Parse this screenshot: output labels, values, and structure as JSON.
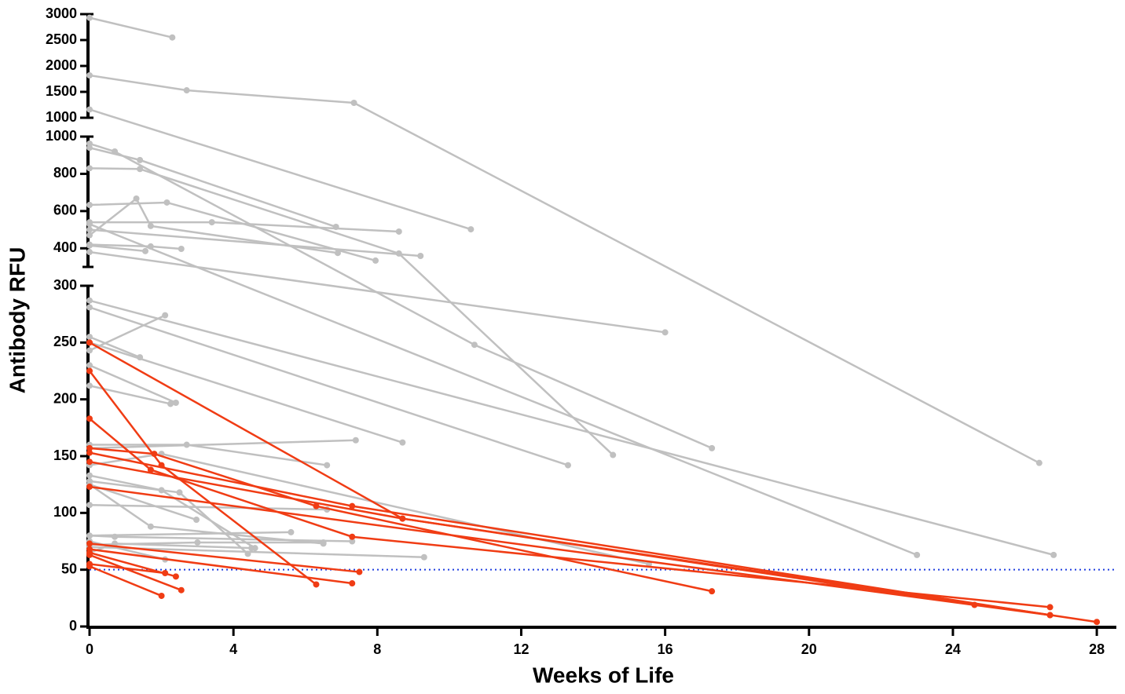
{
  "chart_data": {
    "type": "line",
    "x_label": "Weeks of Life",
    "y_label": "Antibody RFU",
    "xlim": [
      0,
      28.5
    ],
    "xticks": [
      0,
      4,
      8,
      12,
      16,
      20,
      24,
      28
    ],
    "y_segments": [
      {
        "ylim": [
          0,
          300
        ],
        "yticks": [
          0,
          50,
          100,
          150,
          200,
          250,
          300
        ]
      },
      {
        "ylim": [
          300,
          1000
        ],
        "yticks": [
          400,
          600,
          800,
          1000
        ]
      },
      {
        "ylim": [
          1000,
          3000
        ],
        "yticks": [
          1000,
          1500,
          2000,
          2500,
          3000
        ]
      }
    ],
    "reference_line": {
      "value": 50,
      "color": "#1f3ee0"
    },
    "series": [
      {
        "color": "#c0c0c0",
        "x": [
          0,
          2.3
        ],
        "values": [
          2930,
          2550
        ]
      },
      {
        "color": "#c0c0c0",
        "x": [
          0,
          2.7,
          7.35,
          26.4
        ],
        "values": [
          1818,
          1530,
          1288,
          144
        ]
      },
      {
        "color": "#c0c0c0",
        "x": [
          0,
          10.6
        ],
        "values": [
          1160,
          502
        ]
      },
      {
        "color": "#c0c0c0",
        "x": [
          0,
          0.7,
          10.7,
          17.3
        ],
        "values": [
          962,
          920,
          248,
          157
        ]
      },
      {
        "color": "#c0c0c0",
        "x": [
          0,
          1.4,
          6.85
        ],
        "values": [
          940,
          874,
          515
        ]
      },
      {
        "color": "#c0c0c0",
        "x": [
          0,
          1.4,
          8.6,
          14.55
        ],
        "values": [
          830,
          826,
          372,
          151
        ]
      },
      {
        "color": "#c0c0c0",
        "x": [
          0,
          2.15,
          7.95
        ],
        "values": [
          633,
          646,
          334
        ]
      },
      {
        "color": "#c0c0c0",
        "x": [
          0,
          1.3,
          1.7,
          6.9
        ],
        "values": [
          470,
          667,
          520,
          375
        ]
      },
      {
        "color": "#c0c0c0",
        "x": [
          0,
          3.4,
          8.6
        ],
        "values": [
          540,
          540,
          490
        ]
      },
      {
        "color": "#c0c0c0",
        "x": [
          0,
          9.2
        ],
        "values": [
          500,
          359
        ]
      },
      {
        "color": "#c0c0c0",
        "x": [
          0,
          1.7,
          2.55
        ],
        "values": [
          420,
          410,
          397
        ]
      },
      {
        "color": "#c0c0c0",
        "x": [
          0,
          1.55
        ],
        "values": [
          415,
          385
        ]
      },
      {
        "color": "#c0c0c0",
        "x": [
          0,
          16.0
        ],
        "values": [
          380,
          259
        ]
      },
      {
        "color": "#c0c0c0",
        "x": [
          0,
          23.0
        ],
        "values": [
          530,
          63
        ]
      },
      {
        "color": "#c0c0c0",
        "x": [
          0,
          26.8
        ],
        "values": [
          287,
          63
        ]
      },
      {
        "color": "#c0c0c0",
        "x": [
          0,
          13.3
        ],
        "values": [
          281,
          142
        ]
      },
      {
        "color": "#c0c0c0",
        "x": [
          0,
          2.1
        ],
        "values": [
          243,
          274
        ]
      },
      {
        "color": "#c0c0c0",
        "x": [
          0,
          1.4
        ],
        "values": [
          255,
          237
        ]
      },
      {
        "color": "#c0c0c0",
        "x": [
          0,
          8.7
        ],
        "values": [
          250,
          162
        ]
      },
      {
        "color": "#c0c0c0",
        "x": [
          0,
          2.4
        ],
        "values": [
          230,
          197
        ]
      },
      {
        "color": "#c0c0c0",
        "x": [
          0,
          2.25
        ],
        "values": [
          212,
          196
        ]
      },
      {
        "color": "#c0c0c0",
        "x": [
          0,
          7.4
        ],
        "values": [
          157,
          164
        ]
      },
      {
        "color": "#c0c0c0",
        "x": [
          0,
          2.7,
          6.6
        ],
        "values": [
          160,
          160,
          142
        ]
      },
      {
        "color": "#c0c0c0",
        "x": [
          0,
          2.0,
          15.55
        ],
        "values": [
          142,
          152,
          55
        ]
      },
      {
        "color": "#c0c0c0",
        "x": [
          0,
          2.0,
          4.6
        ],
        "values": [
          133,
          120,
          69
        ]
      },
      {
        "color": "#c0c0c0",
        "x": [
          0,
          2.5,
          4.4
        ],
        "values": [
          128,
          118,
          64
        ]
      },
      {
        "color": "#c0c0c0",
        "x": [
          0,
          1.7,
          6.5
        ],
        "values": [
          125,
          88,
          73
        ]
      },
      {
        "color": "#c0c0c0",
        "x": [
          0,
          6.6
        ],
        "values": [
          107,
          103
        ]
      },
      {
        "color": "#c0c0c0",
        "x": [
          0,
          2.97
        ],
        "values": [
          125,
          94
        ]
      },
      {
        "color": "#c0c0c0",
        "x": [
          0,
          5.6
        ],
        "values": [
          80,
          83
        ]
      },
      {
        "color": "#c0c0c0",
        "x": [
          0,
          0.7,
          7.3
        ],
        "values": [
          80,
          79,
          75
        ]
      },
      {
        "color": "#c0c0c0",
        "x": [
          0,
          3.0,
          6.5
        ],
        "values": [
          72,
          74,
          74
        ]
      },
      {
        "color": "#c0c0c0",
        "x": [
          0,
          0.7,
          4.5
        ],
        "values": [
          65,
          73,
          69
        ]
      },
      {
        "color": "#c0c0c0",
        "x": [
          0,
          9.3
        ],
        "values": [
          70,
          61
        ]
      },
      {
        "color": "#c0c0c0",
        "x": [
          0,
          2.1
        ],
        "values": [
          75,
          59
        ]
      },
      {
        "color": "#f03c14",
        "x": [
          0,
          2.0,
          6.3
        ],
        "values": [
          225,
          142,
          37
        ]
      },
      {
        "color": "#f03c14",
        "x": [
          0,
          8.7,
          24.6
        ],
        "values": [
          250,
          95,
          19
        ]
      },
      {
        "color": "#f03c14",
        "x": [
          0,
          1.7,
          7.3,
          26.7
        ],
        "values": [
          183,
          138,
          79,
          17
        ]
      },
      {
        "color": "#f03c14",
        "x": [
          0,
          1.8,
          6.3,
          17.3
        ],
        "values": [
          157,
          152,
          106,
          31
        ]
      },
      {
        "color": "#f03c14",
        "x": [
          0,
          7.3,
          26.7
        ],
        "values": [
          153,
          106,
          10
        ]
      },
      {
        "color": "#f03c14",
        "x": [
          0,
          8.7,
          28
        ],
        "values": [
          145,
          95,
          4
        ]
      },
      {
        "color": "#f03c14",
        "x": [
          0,
          26.7
        ],
        "values": [
          123,
          10
        ]
      },
      {
        "color": "#f03c14",
        "x": [
          0,
          7.5
        ],
        "values": [
          73,
          48
        ]
      },
      {
        "color": "#f03c14",
        "x": [
          0,
          7.3
        ],
        "values": [
          68,
          38
        ]
      },
      {
        "color": "#f03c14",
        "x": [
          0,
          2.4
        ],
        "values": [
          65,
          44
        ]
      },
      {
        "color": "#f03c14",
        "x": [
          0,
          2.55
        ],
        "values": [
          63,
          32
        ]
      },
      {
        "color": "#f03c14",
        "x": [
          0,
          2.1
        ],
        "values": [
          55,
          47
        ]
      },
      {
        "color": "#f03c14",
        "x": [
          0,
          2.0
        ],
        "values": [
          53,
          27
        ]
      }
    ]
  }
}
